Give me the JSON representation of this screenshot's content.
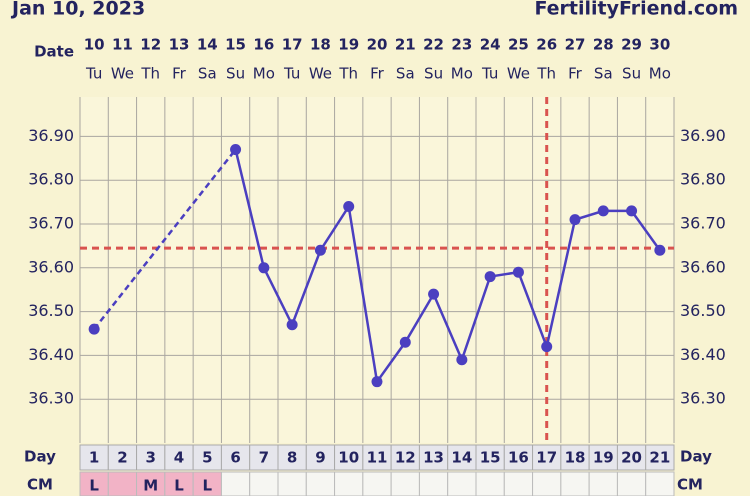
{
  "header": {
    "date": "Jan 10, 2023",
    "site": "FertilityFriend.com"
  },
  "chart_data": {
    "type": "line",
    "date_label": "Date",
    "dates": [
      "10",
      "11",
      "12",
      "13",
      "14",
      "15",
      "16",
      "17",
      "18",
      "19",
      "20",
      "21",
      "22",
      "23",
      "24",
      "25",
      "26",
      "27",
      "28",
      "29",
      "30"
    ],
    "weekdays": [
      "Tu",
      "We",
      "Th",
      "Fr",
      "Sa",
      "Su",
      "Mo",
      "Tu",
      "We",
      "Th",
      "Fr",
      "Sa",
      "Su",
      "Mo",
      "Tu",
      "We",
      "Th",
      "Fr",
      "Sa",
      "Su",
      "Mo"
    ],
    "day_label": "Day",
    "categories": [
      1,
      2,
      3,
      4,
      5,
      6,
      7,
      8,
      9,
      10,
      11,
      12,
      13,
      14,
      15,
      16,
      17,
      18,
      19,
      20,
      21
    ],
    "series": [
      {
        "color": "#4b3fc0",
        "values": [
          36.46,
          null,
          null,
          null,
          null,
          36.87,
          36.6,
          36.47,
          36.64,
          36.74,
          36.34,
          36.43,
          36.54,
          36.39,
          36.58,
          36.59,
          36.42,
          36.71,
          36.73,
          36.73,
          36.64
        ]
      }
    ],
    "ylim": [
      36.2,
      36.99
    ],
    "yticks": [
      {
        "value": 36.3,
        "label": "36.30"
      },
      {
        "value": 36.4,
        "label": "36.40"
      },
      {
        "value": 36.5,
        "label": "36.50"
      },
      {
        "value": 36.6,
        "label": "36.60"
      },
      {
        "value": 36.7,
        "label": "36.70"
      },
      {
        "value": 36.8,
        "label": "36.80"
      },
      {
        "value": 36.9,
        "label": "36.90"
      }
    ],
    "coverline": 36.645,
    "ovulation_day": 17,
    "reference_color": "#d9534f",
    "cm_label": "CM",
    "cm": [
      "L",
      null,
      "M",
      "L",
      "L",
      null,
      null,
      null,
      null,
      null,
      null,
      null,
      null,
      null,
      null,
      null,
      null,
      null,
      null,
      null,
      null
    ],
    "highlight_days": [
      1,
      2,
      3,
      4,
      5
    ],
    "highlight_color": "#f2b3c6",
    "grid": true
  }
}
